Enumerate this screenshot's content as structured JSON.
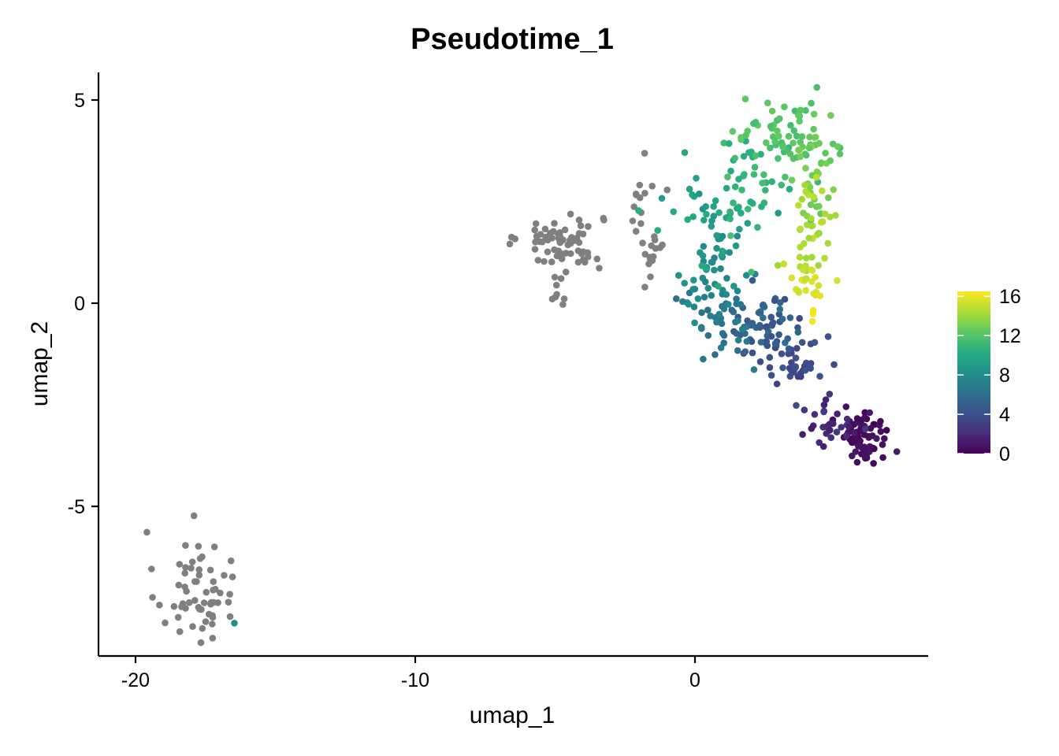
{
  "chart_data": {
    "type": "scatter",
    "title": "Pseudotime_1",
    "xlabel": "umap_1",
    "ylabel": "umap_2",
    "xlim": [
      -21.4,
      8.3
    ],
    "ylim": [
      -8.6,
      5.7
    ],
    "x_ticks": [
      -20,
      -10,
      0
    ],
    "x_tick_labels": [
      "-20",
      "-10",
      "0"
    ],
    "y_ticks": [
      5,
      0,
      -5
    ],
    "y_tick_labels": [
      "5",
      "0",
      "-5"
    ],
    "grid": false,
    "legend_position": "right",
    "na_color": "#808080",
    "color_scale": {
      "name": "viridis",
      "min": 0,
      "max": 16.5,
      "ticks": [
        16,
        12,
        8,
        4,
        0
      ],
      "tick_labels": [
        "16",
        "12",
        "8",
        "4",
        "0"
      ],
      "colors": [
        "#440154",
        "#472D7B",
        "#3B528B",
        "#2C728E",
        "#21908C",
        "#27AD81",
        "#5DC863",
        "#AADC32",
        "#FDE725"
      ]
    },
    "na_clusters": [
      {
        "center": [
          -17.9,
          -7.0
        ],
        "spread": [
          0.7,
          0.7
        ],
        "count": 60
      },
      {
        "center": [
          -4.8,
          1.5
        ],
        "spread": [
          0.75,
          0.35
        ],
        "count": 70
      },
      {
        "center": [
          -4.9,
          0.4
        ],
        "spread": [
          0.25,
          0.3
        ],
        "count": 8
      },
      {
        "center": [
          -1.8,
          2.4
        ],
        "spread": [
          0.25,
          0.5
        ],
        "count": 14
      },
      {
        "center": [
          -1.5,
          1.3
        ],
        "spread": [
          0.25,
          0.35
        ],
        "count": 14
      }
    ],
    "pseudotime_clusters": [
      {
        "center": [
          6.0,
          -3.3
        ],
        "spread": [
          0.45,
          0.35
        ],
        "count": 70,
        "value": 0.6,
        "jitter": 0.6
      },
      {
        "center": [
          5.0,
          -3.0
        ],
        "spread": [
          0.55,
          0.3
        ],
        "count": 30,
        "value": 2.0,
        "jitter": 0.8
      },
      {
        "center": [
          3.6,
          -1.3
        ],
        "spread": [
          0.5,
          0.5
        ],
        "count": 35,
        "value": 3.5,
        "jitter": 0.8
      },
      {
        "center": [
          2.6,
          -0.6
        ],
        "spread": [
          0.6,
          0.45
        ],
        "count": 60,
        "value": 5.0,
        "jitter": 1.0
      },
      {
        "center": [
          1.0,
          -0.6
        ],
        "spread": [
          0.65,
          0.45
        ],
        "count": 40,
        "value": 6.5,
        "jitter": 0.8
      },
      {
        "center": [
          0.6,
          0.7
        ],
        "spread": [
          0.7,
          0.55
        ],
        "count": 45,
        "value": 8.0,
        "jitter": 0.8
      },
      {
        "center": [
          0.6,
          2.3
        ],
        "spread": [
          0.9,
          0.7
        ],
        "count": 40,
        "value": 9.5,
        "jitter": 0.8
      },
      {
        "center": [
          2.2,
          2.9
        ],
        "spread": [
          0.9,
          0.65
        ],
        "count": 45,
        "value": 11.0,
        "jitter": 0.8
      },
      {
        "center": [
          3.1,
          4.3
        ],
        "spread": [
          0.9,
          0.4
        ],
        "count": 55,
        "value": 12.0,
        "jitter": 0.6
      },
      {
        "center": [
          4.3,
          3.3
        ],
        "spread": [
          0.35,
          0.6
        ],
        "count": 35,
        "value": 13.0,
        "jitter": 0.5
      },
      {
        "center": [
          4.2,
          1.7
        ],
        "spread": [
          0.4,
          0.6
        ],
        "count": 35,
        "value": 14.5,
        "jitter": 0.5
      },
      {
        "center": [
          4.0,
          0.7
        ],
        "spread": [
          0.4,
          0.3
        ],
        "count": 20,
        "value": 15.5,
        "jitter": 0.4
      },
      {
        "center": [
          4.2,
          -0.4
        ],
        "spread": [
          0.05,
          0.15
        ],
        "count": 3,
        "value": 16.2,
        "jitter": 0.2
      },
      {
        "center": [
          -16.5,
          -7.9
        ],
        "spread": [
          0.02,
          0.02
        ],
        "count": 1,
        "value": 8.0,
        "jitter": 0.0
      }
    ]
  }
}
